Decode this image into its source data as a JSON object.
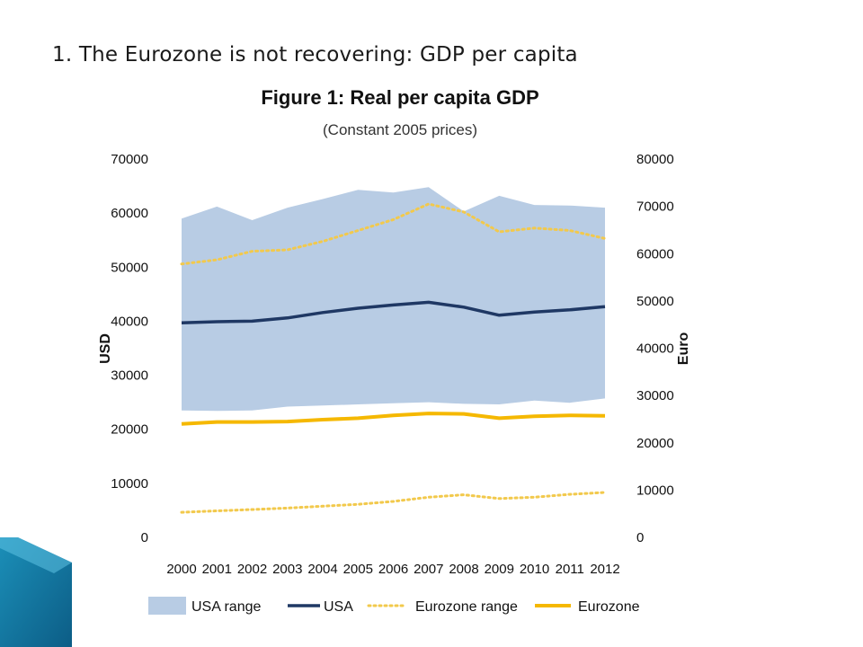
{
  "slide": {
    "title": "1. The Eurozone is not recovering: GDP per capita"
  },
  "chart_data": {
    "type": "line",
    "title": "Figure 1: Real per capita GDP",
    "subtitle": "(Constant 2005 prices)",
    "ylabel": "USD",
    "ylabel_right": "Euro",
    "ylim": [
      0,
      70000
    ],
    "ylim_right": [
      0,
      80000
    ],
    "yticks": [
      "70000",
      "60000",
      "50000",
      "40000",
      "30000",
      "20000",
      "10000",
      "0"
    ],
    "yticks_right": [
      "80000",
      "70000",
      "60000",
      "50000",
      "40000",
      "30000",
      "20000",
      "10000",
      "0"
    ],
    "categories": [
      "2000",
      "2001",
      "2002",
      "2003",
      "2004",
      "2005",
      "2006",
      "2007",
      "2008",
      "2009",
      "2010",
      "2011",
      "2012"
    ],
    "legend_position": "bottom",
    "series": [
      {
        "name": "USA range",
        "kind": "band",
        "axis": "left",
        "color": "#b8cce4",
        "low": [
          23500,
          23400,
          23500,
          24200,
          24400,
          24600,
          24800,
          25000,
          24700,
          24600,
          25300,
          24900,
          25700
        ],
        "high": [
          59000,
          61200,
          58700,
          61000,
          62600,
          64300,
          63800,
          64800,
          60300,
          63200,
          61500,
          61400,
          61000
        ]
      },
      {
        "name": "USA",
        "kind": "line",
        "axis": "left",
        "color": "#1f3864",
        "values": [
          39700,
          39900,
          40000,
          40600,
          41600,
          42400,
          43000,
          43500,
          42600,
          41100,
          41700,
          42100,
          42700
        ]
      },
      {
        "name": "Eurozone range",
        "kind": "dotted-band",
        "axis": "right",
        "color": "#f2c94c",
        "low": [
          5300,
          5600,
          5900,
          6200,
          6600,
          7000,
          7600,
          8500,
          9000,
          8200,
          8500,
          9100,
          9500
        ],
        "high": [
          57800,
          58700,
          60500,
          60800,
          62600,
          64900,
          67200,
          70500,
          68800,
          64600,
          65400,
          64900,
          63200
        ]
      },
      {
        "name": "Eurozone",
        "kind": "line",
        "axis": "right",
        "color": "#f5b800",
        "values": [
          24000,
          24400,
          24400,
          24500,
          24900,
          25200,
          25800,
          26200,
          26100,
          25200,
          25600,
          25800,
          25700
        ]
      }
    ]
  }
}
